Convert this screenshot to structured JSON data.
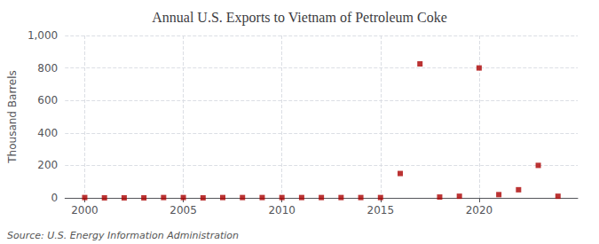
{
  "chart_data": {
    "type": "scatter",
    "title": "Annual U.S. Exports to Vietnam of Petroleum Coke",
    "ylabel": "Thousand Barrels",
    "annotations": [
      "Source: U.S. Energy Information Administration"
    ],
    "x": [
      2000,
      2001,
      2002,
      2003,
      2004,
      2005,
      2006,
      2007,
      2008,
      2009,
      2010,
      2011,
      2012,
      2013,
      2014,
      2015,
      2016,
      2017,
      2018,
      2019,
      2020,
      2021,
      2022,
      2023,
      2024
    ],
    "values": [
      2,
      0,
      0,
      0,
      2,
      2,
      0,
      2,
      2,
      2,
      2,
      2,
      2,
      2,
      2,
      2,
      150,
      825,
      5,
      10,
      800,
      20,
      50,
      200,
      10
    ],
    "color": "#aa0000",
    "marker": "square",
    "xlim": [
      1999,
      2025
    ],
    "xticks": [
      2000,
      2005,
      2010,
      2015,
      2020
    ],
    "ylim": [
      0,
      1000
    ],
    "yticks": [
      0,
      200,
      400,
      600,
      800,
      {
        "value": 1000,
        "label": "1,000"
      }
    ],
    "grid": true
  }
}
